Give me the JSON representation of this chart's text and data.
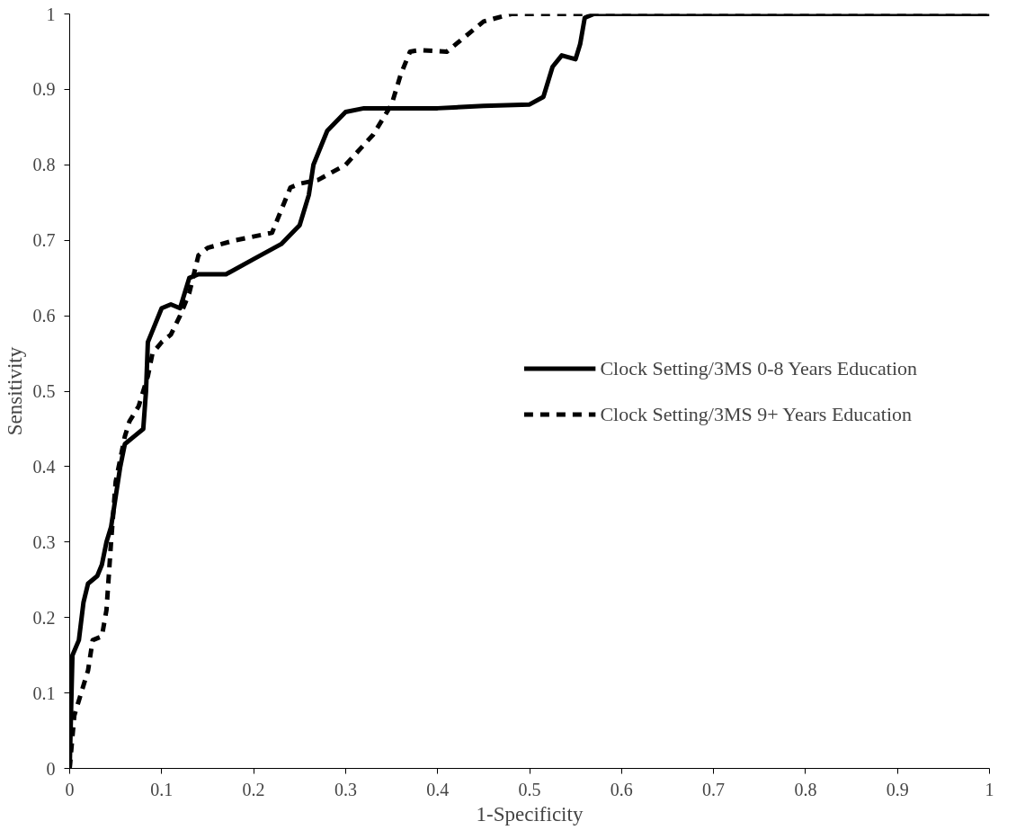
{
  "chart_data": {
    "type": "line",
    "xlabel": "1-Specificity",
    "ylabel": "Sensitivity",
    "xlim": [
      0,
      1
    ],
    "ylim": [
      0,
      1
    ],
    "xticks": [
      0,
      0.1,
      0.2,
      0.3,
      0.4,
      0.5,
      0.6,
      0.7,
      0.8,
      0.9,
      1
    ],
    "yticks": [
      0,
      0.1,
      0.2,
      0.3,
      0.4,
      0.5,
      0.6,
      0.7,
      0.8,
      0.9,
      1
    ],
    "grid": false,
    "legend": "right",
    "marker": "none",
    "series": [
      {
        "name": "Clock Setting/3MS 0-8 Years Education",
        "color": "#000000",
        "line_style": "solid",
        "x": [
          0,
          0.003,
          0.01,
          0.015,
          0.02,
          0.03,
          0.035,
          0.04,
          0.045,
          0.05,
          0.055,
          0.06,
          0.07,
          0.08,
          0.083,
          0.085,
          0.09,
          0.1,
          0.11,
          0.12,
          0.125,
          0.13,
          0.14,
          0.17,
          0.2,
          0.23,
          0.25,
          0.26,
          0.265,
          0.28,
          0.3,
          0.32,
          0.4,
          0.45,
          0.5,
          0.515,
          0.525,
          0.535,
          0.55,
          0.555,
          0.56,
          0.57,
          0.6,
          1
        ],
        "values": [
          0,
          0.15,
          0.17,
          0.22,
          0.245,
          0.255,
          0.27,
          0.3,
          0.32,
          0.36,
          0.4,
          0.43,
          0.44,
          0.45,
          0.5,
          0.565,
          0.58,
          0.61,
          0.615,
          0.61,
          0.63,
          0.65,
          0.655,
          0.655,
          0.675,
          0.695,
          0.72,
          0.76,
          0.8,
          0.845,
          0.87,
          0.875,
          0.875,
          0.878,
          0.88,
          0.89,
          0.93,
          0.945,
          0.94,
          0.96,
          0.995,
          1,
          1,
          1
        ]
      },
      {
        "name": "Clock Setting/3MS 9+ Years Education",
        "color": "#000000",
        "line_style": "dashed",
        "x": [
          0,
          0.005,
          0.01,
          0.02,
          0.025,
          0.035,
          0.04,
          0.045,
          0.05,
          0.06,
          0.065,
          0.075,
          0.085,
          0.09,
          0.1,
          0.11,
          0.12,
          0.13,
          0.14,
          0.15,
          0.18,
          0.22,
          0.24,
          0.25,
          0.27,
          0.3,
          0.33,
          0.35,
          0.36,
          0.37,
          0.38,
          0.41,
          0.43,
          0.45,
          0.48,
          0.6,
          1
        ],
        "values": [
          0,
          0.07,
          0.09,
          0.13,
          0.17,
          0.175,
          0.21,
          0.3,
          0.38,
          0.44,
          0.46,
          0.48,
          0.52,
          0.55,
          0.565,
          0.575,
          0.6,
          0.63,
          0.68,
          0.69,
          0.7,
          0.71,
          0.77,
          0.775,
          0.78,
          0.8,
          0.84,
          0.88,
          0.92,
          0.95,
          0.952,
          0.95,
          0.97,
          0.99,
          1,
          1,
          1
        ]
      }
    ]
  }
}
